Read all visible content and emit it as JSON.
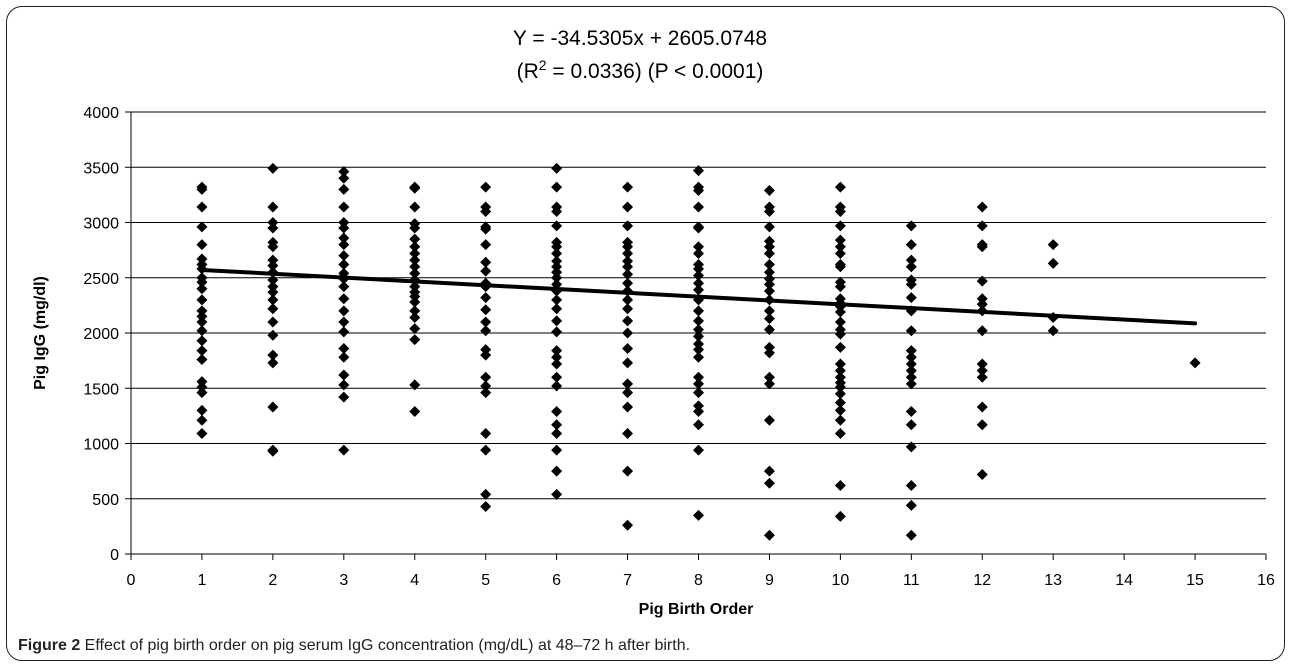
{
  "chart_data": {
    "type": "scatter",
    "title_line1": "Y = -34.5305x + 2605.0748",
    "title_line2_pre": "(R",
    "title_line2_sup": "2",
    "title_line2_post": " = 0.0336) (P < 0.0001)",
    "xlabel": "Pig Birth Order",
    "ylabel": "Pig IgG (mg/dl)",
    "xlim": [
      0,
      16
    ],
    "ylim": [
      0,
      4000
    ],
    "x_ticks": [
      0,
      1,
      2,
      3,
      4,
      5,
      6,
      7,
      8,
      9,
      10,
      11,
      12,
      13,
      14,
      15,
      16
    ],
    "y_ticks": [
      0,
      500,
      1000,
      1500,
      2000,
      2500,
      3000,
      3500,
      4000
    ],
    "grid": "horizontal",
    "legend": "none",
    "marker": "diamond",
    "marker_color": "#000000",
    "trendline": {
      "slope": -34.5305,
      "intercept": 2605.0748,
      "x_range": [
        1,
        15
      ],
      "color": "#000000"
    },
    "points": [
      [
        1,
        3320
      ],
      [
        1,
        3300
      ],
      [
        1,
        3140
      ],
      [
        1,
        2960
      ],
      [
        1,
        2800
      ],
      [
        1,
        2670
      ],
      [
        1,
        2620
      ],
      [
        1,
        2580
      ],
      [
        1,
        2500
      ],
      [
        1,
        2460
      ],
      [
        1,
        2400
      ],
      [
        1,
        2300
      ],
      [
        1,
        2200
      ],
      [
        1,
        2150
      ],
      [
        1,
        2100
      ],
      [
        1,
        2020
      ],
      [
        1,
        1930
      ],
      [
        1,
        1840
      ],
      [
        1,
        1760
      ],
      [
        1,
        1560
      ],
      [
        1,
        1510
      ],
      [
        1,
        1460
      ],
      [
        1,
        1300
      ],
      [
        1,
        1210
      ],
      [
        1,
        1090
      ],
      [
        2,
        3490
      ],
      [
        2,
        3140
      ],
      [
        2,
        3000
      ],
      [
        2,
        2950
      ],
      [
        2,
        2820
      ],
      [
        2,
        2780
      ],
      [
        2,
        2660
      ],
      [
        2,
        2610
      ],
      [
        2,
        2550
      ],
      [
        2,
        2480
      ],
      [
        2,
        2420
      ],
      [
        2,
        2370
      ],
      [
        2,
        2300
      ],
      [
        2,
        2220
      ],
      [
        2,
        2100
      ],
      [
        2,
        1980
      ],
      [
        2,
        1800
      ],
      [
        2,
        1730
      ],
      [
        2,
        1330
      ],
      [
        2,
        940
      ],
      [
        2,
        930
      ],
      [
        3,
        3460
      ],
      [
        3,
        3400
      ],
      [
        3,
        3300
      ],
      [
        3,
        3140
      ],
      [
        3,
        3000
      ],
      [
        3,
        2950
      ],
      [
        3,
        2860
      ],
      [
        3,
        2800
      ],
      [
        3,
        2700
      ],
      [
        3,
        2620
      ],
      [
        3,
        2540
      ],
      [
        3,
        2490
      ],
      [
        3,
        2420
      ],
      [
        3,
        2310
      ],
      [
        3,
        2200
      ],
      [
        3,
        2100
      ],
      [
        3,
        2010
      ],
      [
        3,
        1860
      ],
      [
        3,
        1780
      ],
      [
        3,
        1620
      ],
      [
        3,
        1530
      ],
      [
        3,
        1420
      ],
      [
        3,
        940
      ],
      [
        4,
        3320
      ],
      [
        4,
        3310
      ],
      [
        4,
        3140
      ],
      [
        4,
        2990
      ],
      [
        4,
        2950
      ],
      [
        4,
        2850
      ],
      [
        4,
        2780
      ],
      [
        4,
        2720
      ],
      [
        4,
        2660
      ],
      [
        4,
        2600
      ],
      [
        4,
        2540
      ],
      [
        4,
        2480
      ],
      [
        4,
        2420
      ],
      [
        4,
        2370
      ],
      [
        4,
        2330
      ],
      [
        4,
        2280
      ],
      [
        4,
        2200
      ],
      [
        4,
        2140
      ],
      [
        4,
        2040
      ],
      [
        4,
        1940
      ],
      [
        4,
        1530
      ],
      [
        4,
        1290
      ],
      [
        5,
        3320
      ],
      [
        5,
        3140
      ],
      [
        5,
        3100
      ],
      [
        5,
        2960
      ],
      [
        5,
        2940
      ],
      [
        5,
        2800
      ],
      [
        5,
        2640
      ],
      [
        5,
        2560
      ],
      [
        5,
        2450
      ],
      [
        5,
        2420
      ],
      [
        5,
        2320
      ],
      [
        5,
        2210
      ],
      [
        5,
        2100
      ],
      [
        5,
        2020
      ],
      [
        5,
        1850
      ],
      [
        5,
        1800
      ],
      [
        5,
        1600
      ],
      [
        5,
        1520
      ],
      [
        5,
        1460
      ],
      [
        5,
        1090
      ],
      [
        5,
        940
      ],
      [
        5,
        540
      ],
      [
        5,
        430
      ],
      [
        6,
        3490
      ],
      [
        6,
        3320
      ],
      [
        6,
        3140
      ],
      [
        6,
        3100
      ],
      [
        6,
        2970
      ],
      [
        6,
        2820
      ],
      [
        6,
        2780
      ],
      [
        6,
        2720
      ],
      [
        6,
        2650
      ],
      [
        6,
        2600
      ],
      [
        6,
        2550
      ],
      [
        6,
        2500
      ],
      [
        6,
        2440
      ],
      [
        6,
        2380
      ],
      [
        6,
        2300
      ],
      [
        6,
        2220
      ],
      [
        6,
        2110
      ],
      [
        6,
        2010
      ],
      [
        6,
        1840
      ],
      [
        6,
        1780
      ],
      [
        6,
        1720
      ],
      [
        6,
        1600
      ],
      [
        6,
        1520
      ],
      [
        6,
        1290
      ],
      [
        6,
        1170
      ],
      [
        6,
        1090
      ],
      [
        6,
        940
      ],
      [
        6,
        750
      ],
      [
        6,
        540
      ],
      [
        7,
        3320
      ],
      [
        7,
        3140
      ],
      [
        7,
        2970
      ],
      [
        7,
        2820
      ],
      [
        7,
        2780
      ],
      [
        7,
        2720
      ],
      [
        7,
        2650
      ],
      [
        7,
        2600
      ],
      [
        7,
        2530
      ],
      [
        7,
        2450
      ],
      [
        7,
        2380
      ],
      [
        7,
        2300
      ],
      [
        7,
        2220
      ],
      [
        7,
        2110
      ],
      [
        7,
        2000
      ],
      [
        7,
        1860
      ],
      [
        7,
        1730
      ],
      [
        7,
        1540
      ],
      [
        7,
        1460
      ],
      [
        7,
        1330
      ],
      [
        7,
        1090
      ],
      [
        7,
        750
      ],
      [
        7,
        260
      ],
      [
        8,
        3470
      ],
      [
        8,
        3320
      ],
      [
        8,
        3290
      ],
      [
        8,
        3140
      ],
      [
        8,
        2960
      ],
      [
        8,
        2950
      ],
      [
        8,
        2780
      ],
      [
        8,
        2720
      ],
      [
        8,
        2620
      ],
      [
        8,
        2580
      ],
      [
        8,
        2520
      ],
      [
        8,
        2450
      ],
      [
        8,
        2390
      ],
      [
        8,
        2300
      ],
      [
        8,
        2200
      ],
      [
        8,
        2110
      ],
      [
        8,
        2030
      ],
      [
        8,
        1970
      ],
      [
        8,
        1900
      ],
      [
        8,
        1850
      ],
      [
        8,
        1780
      ],
      [
        8,
        1600
      ],
      [
        8,
        1540
      ],
      [
        8,
        1460
      ],
      [
        8,
        1340
      ],
      [
        8,
        1290
      ],
      [
        8,
        1170
      ],
      [
        8,
        940
      ],
      [
        8,
        350
      ],
      [
        9,
        3290
      ],
      [
        9,
        3140
      ],
      [
        9,
        3100
      ],
      [
        9,
        2960
      ],
      [
        9,
        2830
      ],
      [
        9,
        2780
      ],
      [
        9,
        2720
      ],
      [
        9,
        2620
      ],
      [
        9,
        2550
      ],
      [
        9,
        2490
      ],
      [
        9,
        2440
      ],
      [
        9,
        2380
      ],
      [
        9,
        2300
      ],
      [
        9,
        2200
      ],
      [
        9,
        2130
      ],
      [
        9,
        2030
      ],
      [
        9,
        1870
      ],
      [
        9,
        1820
      ],
      [
        9,
        1600
      ],
      [
        9,
        1540
      ],
      [
        9,
        1210
      ],
      [
        9,
        750
      ],
      [
        9,
        640
      ],
      [
        9,
        170
      ],
      [
        10,
        3320
      ],
      [
        10,
        3140
      ],
      [
        10,
        3100
      ],
      [
        10,
        2970
      ],
      [
        10,
        2840
      ],
      [
        10,
        2780
      ],
      [
        10,
        2720
      ],
      [
        10,
        2620
      ],
      [
        10,
        2600
      ],
      [
        10,
        2460
      ],
      [
        10,
        2420
      ],
      [
        10,
        2310
      ],
      [
        10,
        2270
      ],
      [
        10,
        2240
      ],
      [
        10,
        2190
      ],
      [
        10,
        2100
      ],
      [
        10,
        2030
      ],
      [
        10,
        1990
      ],
      [
        10,
        1870
      ],
      [
        10,
        1720
      ],
      [
        10,
        1660
      ],
      [
        10,
        1600
      ],
      [
        10,
        1550
      ],
      [
        10,
        1510
      ],
      [
        10,
        1450
      ],
      [
        10,
        1370
      ],
      [
        10,
        1300
      ],
      [
        10,
        1210
      ],
      [
        10,
        1090
      ],
      [
        10,
        620
      ],
      [
        10,
        340
      ],
      [
        11,
        2970
      ],
      [
        11,
        2800
      ],
      [
        11,
        2660
      ],
      [
        11,
        2600
      ],
      [
        11,
        2480
      ],
      [
        11,
        2440
      ],
      [
        11,
        2320
      ],
      [
        11,
        2200
      ],
      [
        11,
        2020
      ],
      [
        11,
        1840
      ],
      [
        11,
        1780
      ],
      [
        11,
        1720
      ],
      [
        11,
        1660
      ],
      [
        11,
        1600
      ],
      [
        11,
        1540
      ],
      [
        11,
        1290
      ],
      [
        11,
        1170
      ],
      [
        11,
        970
      ],
      [
        11,
        620
      ],
      [
        11,
        440
      ],
      [
        11,
        170
      ],
      [
        12,
        3140
      ],
      [
        12,
        2970
      ],
      [
        12,
        2800
      ],
      [
        12,
        2780
      ],
      [
        12,
        2470
      ],
      [
        12,
        2310
      ],
      [
        12,
        2260
      ],
      [
        12,
        2200
      ],
      [
        12,
        2020
      ],
      [
        12,
        1720
      ],
      [
        12,
        1660
      ],
      [
        12,
        1600
      ],
      [
        12,
        1330
      ],
      [
        12,
        1170
      ],
      [
        12,
        720
      ],
      [
        13,
        2800
      ],
      [
        13,
        2630
      ],
      [
        13,
        2140
      ],
      [
        13,
        2020
      ],
      [
        15,
        1730
      ]
    ]
  },
  "caption": {
    "label": "Figure 2",
    "text": " Effect of pig birth order on pig serum IgG concentration (mg/dL) at 48–72 h after birth."
  }
}
